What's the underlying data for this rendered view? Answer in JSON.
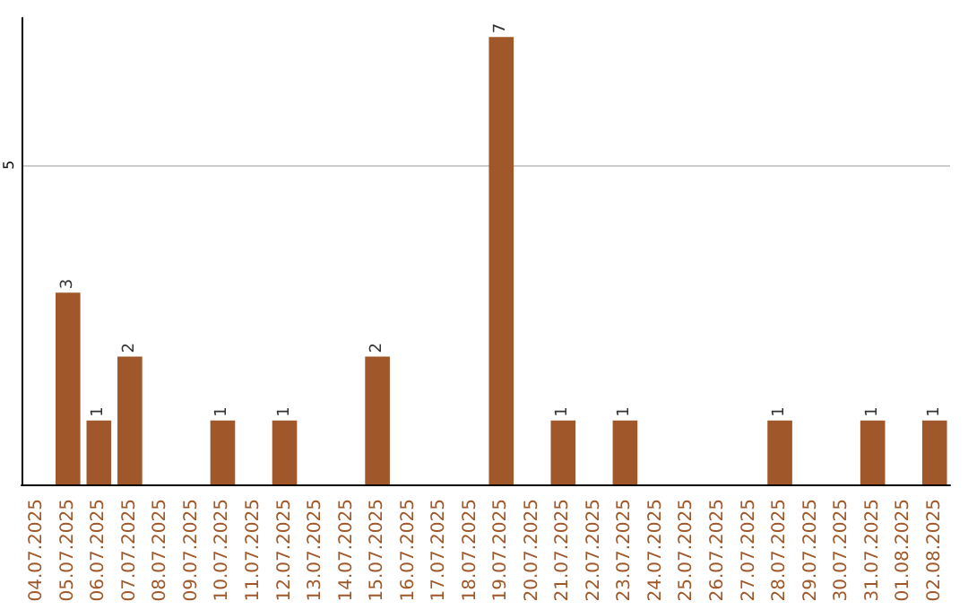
{
  "chart_data": {
    "type": "bar",
    "categories": [
      "04.07.2025",
      "05.07.2025",
      "06.07.2025",
      "07.07.2025",
      "08.07.2025",
      "09.07.2025",
      "10.07.2025",
      "11.07.2025",
      "12.07.2025",
      "13.07.2025",
      "14.07.2025",
      "15.07.2025",
      "16.07.2025",
      "17.07.2025",
      "18.07.2025",
      "19.07.2025",
      "20.07.2025",
      "21.07.2025",
      "22.07.2025",
      "23.07.2025",
      "24.07.2025",
      "25.07.2025",
      "26.07.2025",
      "27.07.2025",
      "28.07.2025",
      "29.07.2025",
      "30.07.2025",
      "31.07.2025",
      "01.08.2025",
      "02.08.2025"
    ],
    "values": [
      0,
      3,
      1,
      2,
      0,
      0,
      1,
      0,
      1,
      0,
      0,
      2,
      0,
      0,
      0,
      7,
      0,
      1,
      0,
      1,
      0,
      0,
      0,
      0,
      1,
      0,
      0,
      1,
      0,
      1
    ],
    "value_labels": [
      null,
      "3",
      "1",
      "2",
      null,
      null,
      "1",
      null,
      "1",
      null,
      null,
      "2",
      null,
      null,
      null,
      "7",
      null,
      "1",
      null,
      "1",
      null,
      null,
      null,
      null,
      "1",
      null,
      null,
      "1",
      null,
      "1"
    ],
    "color": "#a0582a",
    "ylim": [
      0,
      7.3
    ],
    "yticks": [
      5
    ],
    "grid": "y"
  }
}
